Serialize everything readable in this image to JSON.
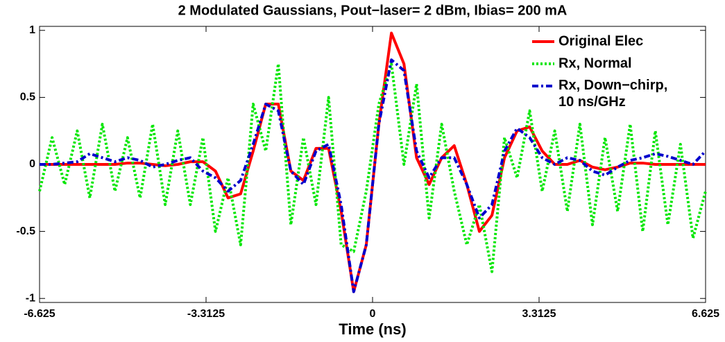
{
  "chart_data": {
    "type": "line",
    "title": "2 Modulated Gaussians, Pout−laser= 2 dBm, Ibias= 200 mA",
    "x_label": "Time (ns)",
    "x": [
      -6.625,
      -6.375,
      -6.125,
      -5.875,
      -5.625,
      -5.375,
      -5.125,
      -4.875,
      -4.625,
      -4.375,
      -4.125,
      -3.875,
      -3.625,
      -3.375,
      -3.125,
      -2.875,
      -2.625,
      -2.375,
      -2.125,
      -1.875,
      -1.625,
      -1.375,
      -1.125,
      -0.875,
      -0.625,
      -0.375,
      -0.125,
      0.125,
      0.375,
      0.625,
      0.875,
      1.125,
      1.375,
      1.625,
      1.875,
      2.125,
      2.375,
      2.625,
      2.875,
      3.125,
      3.375,
      3.625,
      3.875,
      4.125,
      4.375,
      4.625,
      4.875,
      5.125,
      5.375,
      5.625,
      5.875,
      6.125,
      6.375,
      6.625
    ],
    "series": [
      {
        "name": "Original Elec",
        "color": "#ff0000",
        "line_style": "solid",
        "values": [
          0,
          0,
          0,
          0,
          0,
          0,
          0,
          0.01,
          0.01,
          0,
          -0.01,
          0,
          0.02,
          0.02,
          -0.05,
          -0.25,
          -0.22,
          0.1,
          0.45,
          0.45,
          -0.05,
          -0.12,
          0.12,
          0.12,
          -0.35,
          -0.95,
          -0.6,
          0.3,
          0.98,
          0.75,
          0.05,
          -0.15,
          0.05,
          0.14,
          -0.15,
          -0.5,
          -0.38,
          0.05,
          0.25,
          0.28,
          0.1,
          0,
          0,
          0.03,
          -0.02,
          -0.04,
          -0.02,
          0.01,
          0.01,
          0,
          0,
          0,
          0,
          0
        ]
      },
      {
        "name": "Rx,  Normal",
        "color": "#00e600",
        "line_style": "dotted",
        "values": [
          -0.2,
          0.2,
          -0.15,
          0.25,
          -0.25,
          0.3,
          -0.2,
          0.2,
          -0.25,
          0.3,
          -0.3,
          0.25,
          -0.3,
          0.2,
          -0.5,
          -0.1,
          -0.6,
          0.45,
          0.1,
          0.75,
          -0.45,
          0.2,
          -0.3,
          0.5,
          -0.6,
          -0.65,
          -0.2,
          0.45,
          0.75,
          0,
          0.6,
          -0.4,
          0.3,
          -0.2,
          -0.6,
          -0.3,
          -0.8,
          0.2,
          -0.1,
          0.4,
          -0.2,
          0.25,
          -0.35,
          0.3,
          -0.45,
          0.2,
          -0.35,
          0.3,
          -0.5,
          0.25,
          -0.45,
          0.15,
          -0.55,
          -0.2
        ]
      },
      {
        "name": "Rx, Down−chirp,\n10 ns/GHz",
        "color": "#0000cc",
        "line_style": "dashdot",
        "values": [
          0,
          0,
          0.01,
          0.02,
          0.08,
          0.05,
          0.02,
          0.05,
          0.03,
          -0.02,
          0,
          0.03,
          0.05,
          -0.05,
          -0.1,
          -0.2,
          -0.12,
          0.15,
          0.45,
          0.4,
          -0.05,
          -0.15,
          0.1,
          0.15,
          -0.3,
          -0.95,
          -0.6,
          0.3,
          0.78,
          0.7,
          0.1,
          -0.1,
          0.05,
          0.05,
          -0.15,
          -0.4,
          -0.3,
          0.1,
          0.27,
          0.2,
          0.05,
          0,
          0.05,
          0.03,
          -0.05,
          -0.08,
          -0.02,
          0.03,
          0.05,
          0.08,
          0.06,
          0.03,
          0,
          0.1
        ]
      }
    ],
    "xlim": [
      -6.625,
      6.625
    ],
    "xticks": [
      -6.625,
      -3.3125,
      0,
      3.3125,
      6.625
    ],
    "ylim": [
      -1.03,
      1.03
    ],
    "yticks": [
      -1,
      -0.5,
      0,
      0.5,
      1
    ],
    "grid": false,
    "legend": "upper right"
  }
}
